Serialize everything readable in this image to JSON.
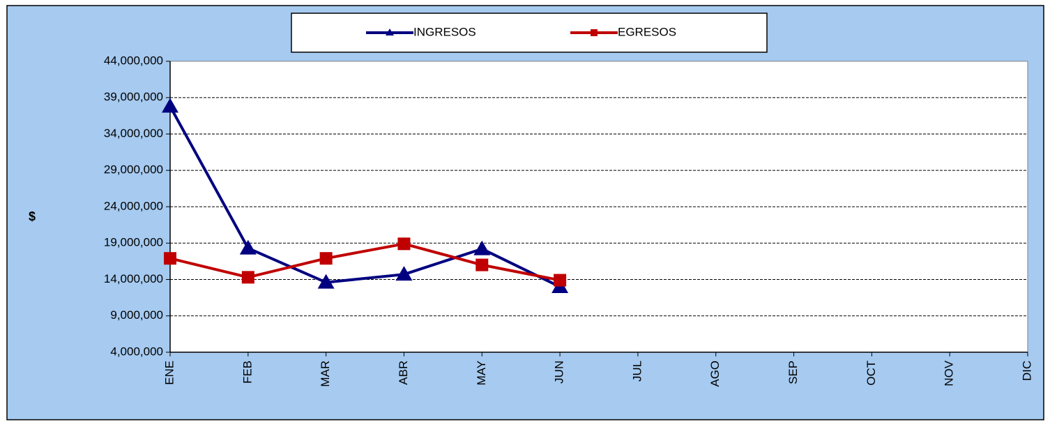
{
  "chart_data": {
    "type": "line",
    "y_label": "$",
    "categories": [
      "ENE",
      "FEB",
      "MAR",
      "ABR",
      "MAY",
      "JUN",
      "JUL",
      "AGO",
      "SEP",
      "OCT",
      "NOV",
      "DIC"
    ],
    "series": [
      {
        "name": "INGRESOS",
        "color": "#000080",
        "marker": "triangle",
        "values": [
          37800000,
          18300000,
          13600000,
          14700000,
          18200000,
          13000000,
          null,
          null,
          null,
          null,
          null,
          null
        ]
      },
      {
        "name": "EGRESOS",
        "color": "#C00000",
        "marker": "square",
        "values": [
          16900000,
          14300000,
          16900000,
          18900000,
          16000000,
          13900000,
          null,
          null,
          null,
          null,
          null,
          null
        ]
      }
    ],
    "ylim": [
      4000000,
      44000000
    ],
    "yticks": [
      {
        "value": 4000000,
        "label": "4,000,000"
      },
      {
        "value": 9000000,
        "label": "9,000,000"
      },
      {
        "value": 14000000,
        "label": "14,000,000"
      },
      {
        "value": 19000000,
        "label": "19,000,000"
      },
      {
        "value": 24000000,
        "label": "24,000,000"
      },
      {
        "value": 29000000,
        "label": "29,000,000"
      },
      {
        "value": 34000000,
        "label": "34,000,000"
      },
      {
        "value": 39000000,
        "label": "39,000,000"
      },
      {
        "value": 44000000,
        "label": "44,000,000"
      }
    ],
    "grid": true,
    "legend": "top"
  }
}
